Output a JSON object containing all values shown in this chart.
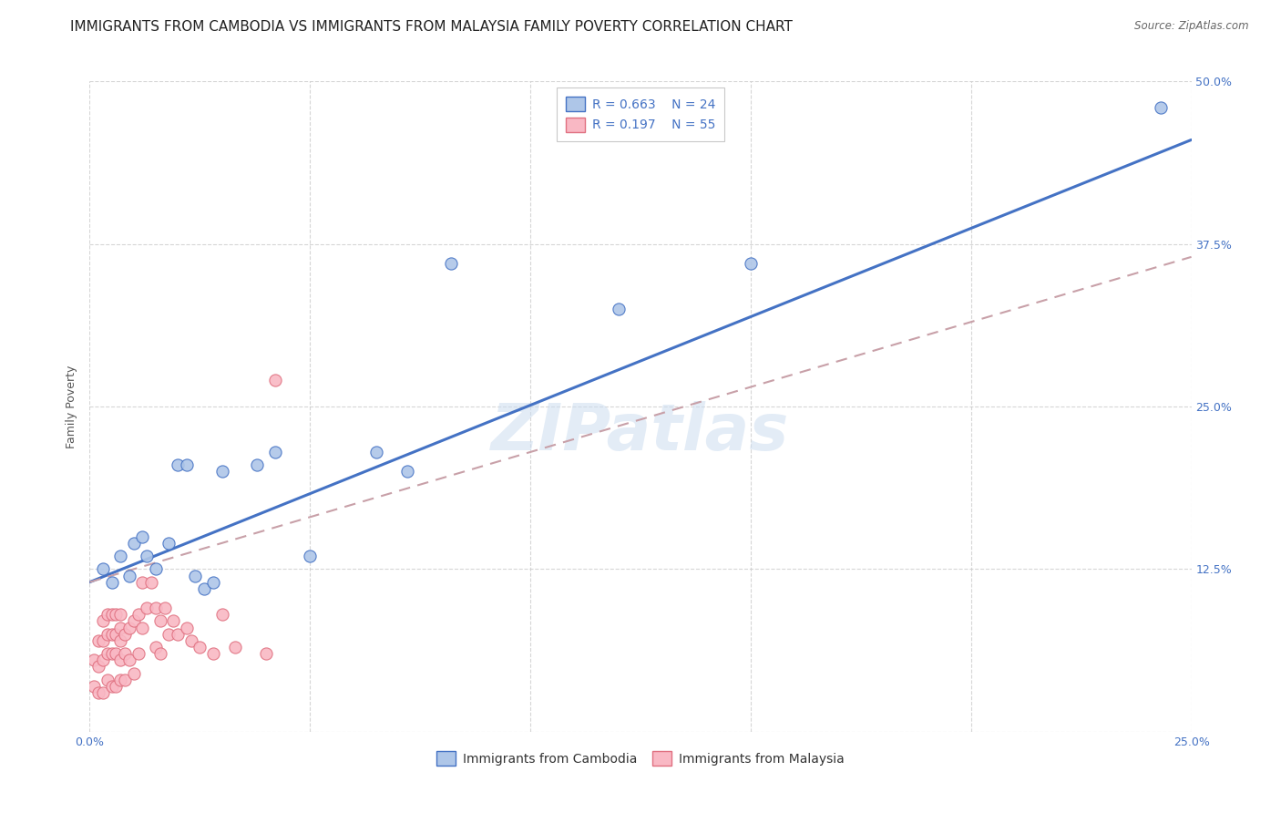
{
  "title": "IMMIGRANTS FROM CAMBODIA VS IMMIGRANTS FROM MALAYSIA FAMILY POVERTY CORRELATION CHART",
  "source": "Source: ZipAtlas.com",
  "ylabel": "Family Poverty",
  "ylim": [
    0.0,
    0.5
  ],
  "xlim": [
    0.0,
    0.25
  ],
  "yticks": [
    0.0,
    0.125,
    0.25,
    0.375,
    0.5
  ],
  "ytick_labels": [
    "",
    "12.5%",
    "25.0%",
    "37.5%",
    "50.0%"
  ],
  "xticks": [
    0.0,
    0.05,
    0.1,
    0.15,
    0.2,
    0.25
  ],
  "xtick_labels": [
    "0.0%",
    "",
    "",
    "",
    "",
    "25.0%"
  ],
  "legend_r1": "R = 0.663",
  "legend_n1": "N = 24",
  "legend_r2": "R = 0.197",
  "legend_n2": "N = 55",
  "watermark": "ZIPatlas",
  "cambodia_color": "#aec6e8",
  "cambodia_edge": "#4472c4",
  "malaysia_color": "#f9b8c4",
  "malaysia_edge": "#e07080",
  "line_cambodia_color": "#4472c4",
  "line_malaysia_color": "#c8a0a8",
  "title_fontsize": 11,
  "axis_label_fontsize": 9,
  "tick_fontsize": 9,
  "legend_fontsize": 10,
  "cambodia_x": [
    0.003,
    0.005,
    0.007,
    0.009,
    0.01,
    0.012,
    0.013,
    0.015,
    0.018,
    0.02,
    0.022,
    0.024,
    0.026,
    0.028,
    0.03,
    0.038,
    0.042,
    0.05,
    0.065,
    0.072,
    0.082,
    0.12,
    0.15,
    0.243
  ],
  "cambodia_y": [
    0.125,
    0.115,
    0.135,
    0.12,
    0.145,
    0.15,
    0.135,
    0.125,
    0.145,
    0.205,
    0.205,
    0.12,
    0.11,
    0.115,
    0.2,
    0.205,
    0.215,
    0.135,
    0.215,
    0.2,
    0.36,
    0.325,
    0.36,
    0.48
  ],
  "malaysia_x": [
    0.001,
    0.001,
    0.002,
    0.002,
    0.002,
    0.003,
    0.003,
    0.003,
    0.003,
    0.004,
    0.004,
    0.004,
    0.004,
    0.005,
    0.005,
    0.005,
    0.005,
    0.006,
    0.006,
    0.006,
    0.006,
    0.007,
    0.007,
    0.007,
    0.007,
    0.007,
    0.008,
    0.008,
    0.008,
    0.009,
    0.009,
    0.01,
    0.01,
    0.011,
    0.011,
    0.012,
    0.012,
    0.013,
    0.014,
    0.015,
    0.015,
    0.016,
    0.016,
    0.017,
    0.018,
    0.019,
    0.02,
    0.022,
    0.023,
    0.025,
    0.028,
    0.03,
    0.033,
    0.04,
    0.042
  ],
  "malaysia_y": [
    0.035,
    0.055,
    0.03,
    0.05,
    0.07,
    0.03,
    0.055,
    0.07,
    0.085,
    0.04,
    0.06,
    0.075,
    0.09,
    0.035,
    0.06,
    0.075,
    0.09,
    0.035,
    0.06,
    0.075,
    0.09,
    0.04,
    0.055,
    0.07,
    0.08,
    0.09,
    0.04,
    0.06,
    0.075,
    0.055,
    0.08,
    0.045,
    0.085,
    0.06,
    0.09,
    0.08,
    0.115,
    0.095,
    0.115,
    0.065,
    0.095,
    0.06,
    0.085,
    0.095,
    0.075,
    0.085,
    0.075,
    0.08,
    0.07,
    0.065,
    0.06,
    0.09,
    0.065,
    0.06,
    0.27
  ],
  "cam_line_x": [
    0.0,
    0.25
  ],
  "cam_line_y": [
    0.115,
    0.455
  ],
  "mal_line_x": [
    0.0,
    0.25
  ],
  "mal_line_y": [
    0.115,
    0.365
  ]
}
